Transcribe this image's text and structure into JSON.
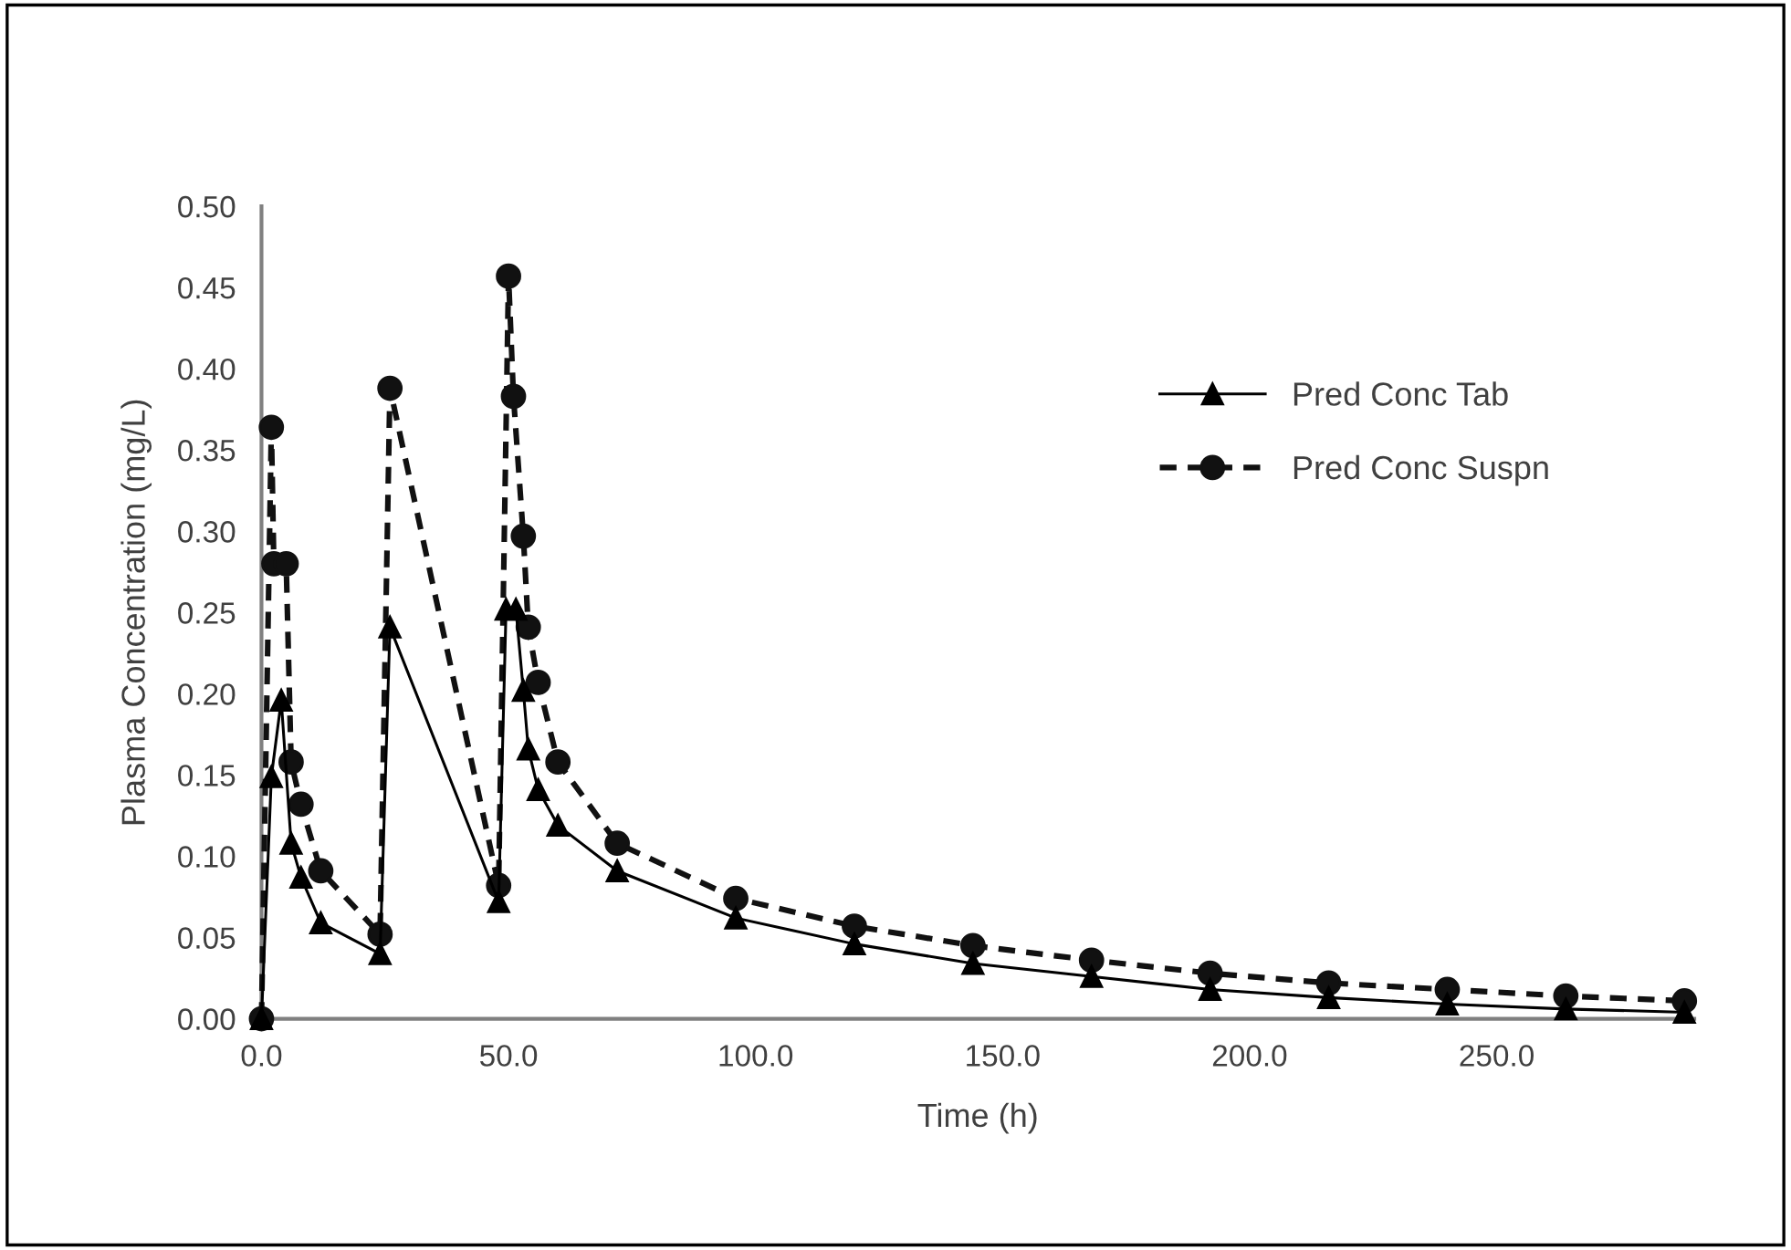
{
  "chart_data": {
    "type": "line",
    "xlabel": "Time (h)",
    "ylabel": "Plasma Concentration (mg/L)",
    "xlim": [
      0,
      290
    ],
    "xticks": [
      {
        "value": 0,
        "label": "0.0"
      },
      {
        "value": 50,
        "label": "50.0"
      },
      {
        "value": 100,
        "label": "100.0"
      },
      {
        "value": 150,
        "label": "150.0"
      },
      {
        "value": 200,
        "label": "200.0"
      },
      {
        "value": 250,
        "label": "250.0"
      }
    ],
    "ylim": [
      0,
      0.5
    ],
    "yticks": [
      {
        "value": 0,
        "label": "0.00"
      },
      {
        "value": 0.05,
        "label": "0.05"
      },
      {
        "value": 0.1,
        "label": "0.10"
      },
      {
        "value": 0.15,
        "label": "0.15"
      },
      {
        "value": 0.2,
        "label": "0.20"
      },
      {
        "value": 0.25,
        "label": "0.25"
      },
      {
        "value": 0.3,
        "label": "0.30"
      },
      {
        "value": 0.35,
        "label": "0.35"
      },
      {
        "value": 0.4,
        "label": "0.40"
      },
      {
        "value": 0.45,
        "label": "0.45"
      },
      {
        "value": 0.5,
        "label": "0.50"
      }
    ],
    "grid": false,
    "legend": "right",
    "series": [
      {
        "name": "Pred Conc Tab",
        "color": "#000000",
        "marker": "triangle",
        "line_style": "solid",
        "x": [
          0,
          2,
          4,
          6,
          8,
          12,
          24,
          26,
          48,
          49.5,
          51.5,
          53,
          54,
          56,
          60,
          72,
          96,
          120,
          144,
          168,
          192,
          216,
          240,
          264,
          288
        ],
        "values": [
          0,
          0.149,
          0.196,
          0.108,
          0.087,
          0.059,
          0.04,
          0.241,
          0.072,
          0.252,
          0.252,
          0.202,
          0.166,
          0.141,
          0.119,
          0.091,
          0.062,
          0.046,
          0.034,
          0.026,
          0.018,
          0.013,
          0.009,
          0.006,
          0.004
        ]
      },
      {
        "name": "Pred Conc Suspn",
        "color": "#111111",
        "marker": "circle",
        "line_style": "dashed",
        "x": [
          0,
          2,
          2.5,
          5,
          6,
          8,
          12,
          24,
          26,
          48,
          50,
          51,
          53,
          54,
          56,
          60,
          72,
          96,
          120,
          144,
          168,
          192,
          216,
          240,
          264,
          288
        ],
        "values": [
          0,
          0.364,
          0.28,
          0.28,
          0.158,
          0.132,
          0.091,
          0.052,
          0.388,
          0.082,
          0.457,
          0.383,
          0.297,
          0.241,
          0.207,
          0.158,
          0.108,
          0.074,
          0.057,
          0.045,
          0.036,
          0.028,
          0.022,
          0.018,
          0.014,
          0.011
        ]
      }
    ]
  }
}
